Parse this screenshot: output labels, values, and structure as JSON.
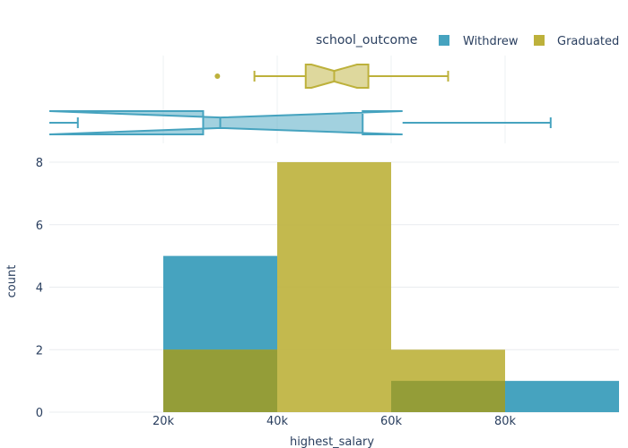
{
  "chart_data": {
    "type": "bar",
    "subtype": "overlaid-histogram-with-marginal-box",
    "xlabel": "highest_salary",
    "ylabel": "count",
    "xlim": [
      0,
      100000
    ],
    "ylim": [
      0,
      8
    ],
    "x_tick_values": [
      20000,
      40000,
      60000,
      80000
    ],
    "x_tick_labels": [
      "20k",
      "40k",
      "60k",
      "80k"
    ],
    "y_tick_values": [
      0,
      2,
      4,
      6,
      8
    ],
    "y_tick_labels": [
      "0",
      "2",
      "4",
      "6",
      "8"
    ],
    "legend": {
      "title": "school_outcome",
      "placement": "top-right"
    },
    "grid": true,
    "bin_edges": [
      20000,
      40000,
      60000,
      80000,
      100000
    ],
    "series": [
      {
        "name": "Withdrew",
        "color": "#46a3bf",
        "counts": [
          5,
          0,
          1,
          1
        ],
        "box": {
          "whisker_low": 5000,
          "q1": 27000,
          "median": 30000,
          "q3": 55000,
          "whisker_high": 88000,
          "notch_low": 0,
          "notch_high": 62000,
          "outliers": []
        }
      },
      {
        "name": "Graduated",
        "color": "#bdb13b",
        "counts": [
          2,
          8,
          2,
          0
        ],
        "box": {
          "whisker_low": 36000,
          "q1": 45000,
          "median": 50000,
          "q3": 56000,
          "whisker_high": 70000,
          "notch_low": 46000,
          "notch_high": 54000,
          "outliers": [
            29500
          ]
        }
      }
    ]
  }
}
